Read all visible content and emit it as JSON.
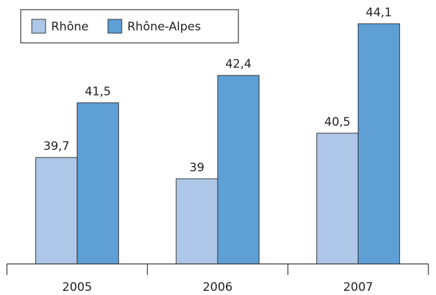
{
  "chart_data": {
    "type": "bar",
    "categories": [
      "2005",
      "2006",
      "2007"
    ],
    "series": [
      {
        "name": "Rhône",
        "color": "#aec7e8",
        "values": [
          39.7,
          39,
          40.5
        ],
        "value_labels": [
          "39,7",
          "39",
          "40,5"
        ]
      },
      {
        "name": "Rhône-Alpes",
        "color": "#5e9fd6",
        "values": [
          41.5,
          42.4,
          44.1
        ],
        "value_labels": [
          "41,5",
          "42,4",
          "44,1"
        ]
      }
    ],
    "ylim": [
      36.2,
      44.7
    ],
    "legend": "top-left"
  }
}
